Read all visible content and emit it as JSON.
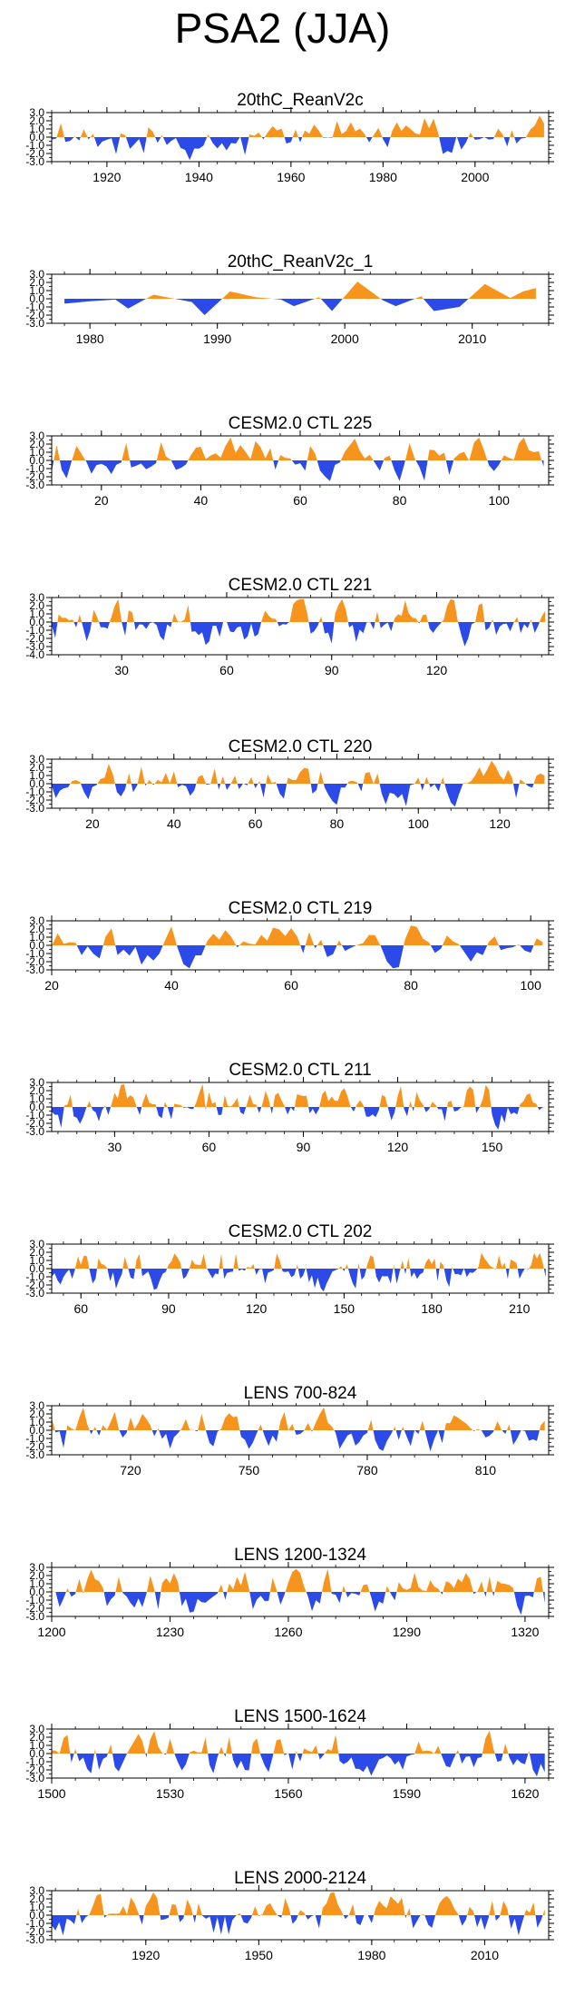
{
  "title": "PSA2 (JJA)",
  "colors": {
    "positive": "#f7941d",
    "negative": "#2b4ae8",
    "frame": "#000000"
  },
  "chart_data": [
    {
      "type": "area",
      "title": "20thC_ReanV2c",
      "xlim": [
        1908,
        2016
      ],
      "ylim": [
        -3.0,
        3.0
      ],
      "yticks": [
        3.0,
        2.0,
        1.0,
        0.0,
        -1.0,
        -2.0,
        -3.0
      ],
      "ytick_labels": [
        "3.0",
        "2.0",
        "1.0",
        "0.0",
        "-1.0",
        "-2.0",
        "-3.0"
      ],
      "xticks": [
        1920,
        1940,
        1960,
        1980,
        2000
      ],
      "x": [
        1908,
        2015
      ],
      "seed": 11,
      "amp": 1.0
    },
    {
      "type": "area",
      "title": "20thC_ReanV2c_1",
      "xlim": [
        1977,
        2016
      ],
      "ylim": [
        -3.0,
        3.0
      ],
      "yticks": [
        3.0,
        2.0,
        1.0,
        0.0,
        -1.0,
        -2.0,
        -3.0
      ],
      "ytick_labels": [
        "3.0",
        "2.0",
        "1.0",
        "0.0",
        "-1.0",
        "-2.0",
        "-3.0"
      ],
      "xticks": [
        1980,
        1990,
        2000,
        2010
      ],
      "x": [
        1978,
        1980,
        1982,
        1983,
        1985,
        1986,
        1988,
        1989,
        1991,
        1993,
        1995,
        1996,
        1998,
        1999,
        2001,
        2003,
        2004,
        2006,
        2007,
        2009,
        2011,
        2013,
        2014,
        2015
      ],
      "y": [
        -0.6,
        -0.3,
        -0.1,
        -1.2,
        0.5,
        0.2,
        -0.4,
        -2.0,
        0.9,
        0.2,
        -0.1,
        -0.9,
        0.2,
        -1.5,
        2.1,
        -0.2,
        -0.9,
        0.3,
        -1.5,
        -1.0,
        1.8,
        0.1,
        0.9,
        1.3
      ]
    },
    {
      "type": "area",
      "title": "CESM2.0 CTL 225",
      "xlim": [
        10,
        110
      ],
      "ylim": [
        -3.0,
        3.0
      ],
      "yticks": [
        3.0,
        2.0,
        1.0,
        0.0,
        -1.0,
        -2.0,
        -3.0
      ],
      "ytick_labels": [
        "3.0",
        "2.0",
        "1.0",
        "0.0",
        "-1.0",
        "-2.0",
        "-3.0"
      ],
      "xticks": [
        20,
        40,
        60,
        80,
        100
      ],
      "x": [
        10,
        109
      ],
      "seed": 225,
      "amp": 1.1
    },
    {
      "type": "area",
      "title": "CESM2.0 CTL 221",
      "xlim": [
        10,
        152
      ],
      "ylim": [
        -4.0,
        3.0
      ],
      "yticks": [
        3.0,
        2.0,
        1.0,
        0.0,
        -1.0,
        -2.0,
        -3.0,
        -4.0
      ],
      "ytick_labels": [
        "3.0",
        "2.0",
        "1.0",
        "0.0",
        "-1.0",
        "-2.0",
        "-3.0",
        "-4.0"
      ],
      "xticks": [
        30,
        60,
        90,
        120
      ],
      "x": [
        10,
        151
      ],
      "seed": 221,
      "amp": 1.0
    },
    {
      "type": "area",
      "title": "CESM2.0 CTL 220",
      "xlim": [
        10,
        132
      ],
      "ylim": [
        -3.0,
        3.0
      ],
      "yticks": [
        3.0,
        2.0,
        1.0,
        0.0,
        -1.0,
        -2.0,
        -3.0
      ],
      "ytick_labels": [
        "3.0",
        "2.0",
        "1.0",
        "0.0",
        "-1.0",
        "-2.0",
        "-3.0"
      ],
      "xticks": [
        20,
        40,
        60,
        80,
        100,
        120
      ],
      "x": [
        10,
        131
      ],
      "seed": 220,
      "amp": 1.0
    },
    {
      "type": "area",
      "title": "CESM2.0 CTL 219",
      "xlim": [
        20,
        103
      ],
      "ylim": [
        -3.0,
        3.0
      ],
      "yticks": [
        3.0,
        2.0,
        1.0,
        0.0,
        -1.0,
        -2.0,
        -3.0
      ],
      "ytick_labels": [
        "3.0",
        "2.0",
        "1.0",
        "0.0",
        "-1.0",
        "-2.0",
        "-3.0"
      ],
      "xticks": [
        20,
        40,
        60,
        80,
        100
      ],
      "x": [
        20,
        102
      ],
      "seed": 219,
      "amp": 1.0
    },
    {
      "type": "area",
      "title": "CESM2.0 CTL 211",
      "xlim": [
        10,
        168
      ],
      "ylim": [
        -3.0,
        3.0
      ],
      "yticks": [
        3.0,
        2.0,
        1.0,
        0.0,
        -1.0,
        -2.0,
        -3.0
      ],
      "ytick_labels": [
        "3.0",
        "2.0",
        "1.0",
        "0.0",
        "-1.0",
        "-2.0",
        "-3.0"
      ],
      "xticks": [
        30,
        60,
        90,
        120,
        150
      ],
      "x": [
        10,
        167
      ],
      "seed": 211,
      "amp": 1.0
    },
    {
      "type": "area",
      "title": "CESM2.0 CTL 202",
      "xlim": [
        50,
        220
      ],
      "ylim": [
        -3.0,
        3.0
      ],
      "yticks": [
        3.0,
        2.0,
        1.0,
        0.0,
        -1.0,
        -2.0,
        -3.0
      ],
      "ytick_labels": [
        "3.0",
        "2.0",
        "1.0",
        "0.0",
        "-1.0",
        "-2.0",
        "-3.0"
      ],
      "xticks": [
        60,
        90,
        120,
        150,
        180,
        210
      ],
      "x": [
        50,
        219
      ],
      "seed": 202,
      "amp": 1.0
    },
    {
      "type": "area",
      "title": "LENS 700-824",
      "xlim": [
        700,
        826
      ],
      "ylim": [
        -3.0,
        3.0
      ],
      "yticks": [
        3.0,
        2.0,
        1.0,
        0.0,
        -1.0,
        -2.0,
        -3.0
      ],
      "ytick_labels": [
        "3.0",
        "2.0",
        "1.0",
        "0.0",
        "-1.0",
        "-2.0",
        "-3.0"
      ],
      "xticks": [
        720,
        750,
        780,
        810
      ],
      "x": [
        700,
        825
      ],
      "seed": 700,
      "amp": 1.0
    },
    {
      "type": "area",
      "title": "LENS 1200-1324",
      "xlim": [
        1200,
        1326
      ],
      "ylim": [
        -3.0,
        3.0
      ],
      "yticks": [
        3.0,
        2.0,
        1.0,
        0.0,
        -1.0,
        -2.0,
        -3.0
      ],
      "ytick_labels": [
        "3.0",
        "2.0",
        "1.0",
        "0.0",
        "-1.0",
        "-2.0",
        "-3.0"
      ],
      "xticks": [
        1200,
        1230,
        1260,
        1290,
        1320
      ],
      "x": [
        1200,
        1325
      ],
      "seed": 1200,
      "amp": 1.0
    },
    {
      "type": "area",
      "title": "LENS 1500-1624",
      "xlim": [
        1500,
        1626
      ],
      "ylim": [
        -3.0,
        3.0
      ],
      "yticks": [
        3.0,
        2.0,
        1.0,
        0.0,
        -1.0,
        -2.0,
        -3.0
      ],
      "ytick_labels": [
        "3.0",
        "2.0",
        "1.0",
        "0.0",
        "-1.0",
        "-2.0",
        "-3.0"
      ],
      "xticks": [
        1500,
        1530,
        1560,
        1590,
        1620
      ],
      "x": [
        1500,
        1625
      ],
      "seed": 1500,
      "amp": 1.0
    },
    {
      "type": "area",
      "title": "LENS 2000-2124",
      "xlim": [
        1895,
        2027
      ],
      "ylim": [
        -3.0,
        3.0
      ],
      "yticks": [
        3.0,
        2.0,
        1.0,
        0.0,
        -1.0,
        -2.0,
        -3.0
      ],
      "ytick_labels": [
        "3.0",
        "2.0",
        "1.0",
        "0.0",
        "-1.0",
        "-2.0",
        "-3.0"
      ],
      "xticks": [
        1920,
        1950,
        1980,
        2010
      ],
      "x": [
        1895,
        2026
      ],
      "seed": 2000,
      "amp": 1.0
    }
  ]
}
